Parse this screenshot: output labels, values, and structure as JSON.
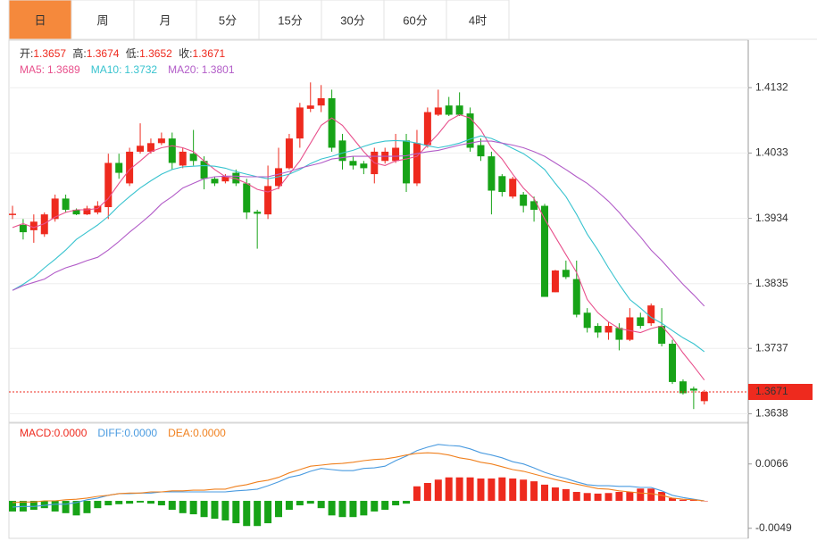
{
  "tabs": [
    "日",
    "周",
    "月",
    "5分",
    "15分",
    "30分",
    "60分",
    "4时"
  ],
  "active_tab": 0,
  "chart_data": [
    {
      "type": "candlestick",
      "info": [
        {
          "label": "开:",
          "value": 1.3657
        },
        {
          "label": "高:",
          "value": 1.3674
        },
        {
          "label": "低:",
          "value": 1.3652
        },
        {
          "label": "收:",
          "value": 1.3671
        }
      ],
      "up_color": "#ee2a1e",
      "down_color": "#17a317",
      "open": [
        1.3939,
        1.3924,
        1.3916,
        1.391,
        1.3933,
        1.3964,
        1.3947,
        1.394,
        1.3943,
        1.3951,
        1.4018,
        1.3987,
        1.4035,
        1.4035,
        1.4048,
        1.4055,
        1.4014,
        1.4032,
        1.4021,
        1.3994,
        1.399,
        1.4003,
        1.3987,
        1.3944,
        1.394,
        1.3983,
        1.401,
        1.4055,
        1.41,
        1.4105,
        1.4116,
        1.4052,
        1.4021,
        1.4017,
        1.4001,
        1.4021,
        1.4021,
        1.4052,
        1.3987,
        1.4045,
        1.4091,
        1.4105,
        1.4105,
        1.4093,
        1.4045,
        1.4028,
        1.3998,
        1.3967,
        1.397,
        1.396,
        1.3953,
        1.3822,
        1.3856,
        1.3842,
        1.3791,
        1.3771,
        1.3761,
        1.3768,
        1.375,
        1.3784,
        1.3775,
        1.3771,
        1.3744,
        1.3687,
        1.3676,
        1.3657
      ],
      "high": [
        1.3953,
        1.3933,
        1.394,
        1.3943,
        1.397,
        1.397,
        1.3949,
        1.3953,
        1.396,
        1.4032,
        1.4032,
        1.4041,
        1.4078,
        1.4055,
        1.4064,
        1.4064,
        1.4041,
        1.4068,
        1.4028,
        1.3997,
        1.4001,
        1.4008,
        1.3994,
        1.3947,
        1.4014,
        1.4041,
        1.4062,
        1.4109,
        1.414,
        1.4136,
        1.4129,
        1.4062,
        1.4028,
        1.4021,
        1.4041,
        1.4041,
        1.4062,
        1.4062,
        1.4068,
        1.4102,
        1.4129,
        1.4118,
        1.4125,
        1.4102,
        1.4055,
        1.4035,
        1.4001,
        1.3997,
        1.3974,
        1.3967,
        1.3956,
        1.3856,
        1.387,
        1.387,
        1.3798,
        1.3775,
        1.3777,
        1.3775,
        1.3798,
        1.3791,
        1.3805,
        1.3798,
        1.375,
        1.369,
        1.3679,
        1.3674
      ],
      "low": [
        1.3933,
        1.3902,
        1.3897,
        1.3906,
        1.3929,
        1.3943,
        1.3939,
        1.3939,
        1.394,
        1.3933,
        1.3994,
        1.3983,
        1.4032,
        1.4032,
        1.4045,
        1.4008,
        1.401,
        1.4014,
        1.3978,
        1.3983,
        1.3987,
        1.3983,
        1.3933,
        1.3888,
        1.3933,
        1.3978,
        1.4008,
        1.4041,
        1.4095,
        1.4095,
        1.4035,
        1.4008,
        1.4008,
        1.4001,
        1.3987,
        1.4017,
        1.4018,
        1.3974,
        1.3983,
        1.4041,
        1.4089,
        1.4089,
        1.4089,
        1.4035,
        1.4021,
        1.394,
        1.3967,
        1.3964,
        1.3943,
        1.3929,
        1.3815,
        1.3822,
        1.3842,
        1.3784,
        1.3761,
        1.3753,
        1.375,
        1.3734,
        1.3748,
        1.3767,
        1.3771,
        1.374,
        1.3683,
        1.3667,
        1.3645,
        1.3652
      ],
      "close": [
        1.3941,
        1.3913,
        1.3929,
        1.394,
        1.3964,
        1.3947,
        1.394,
        1.3949,
        1.3953,
        1.4018,
        1.4003,
        1.4035,
        1.4044,
        1.4048,
        1.4055,
        1.4018,
        1.4035,
        1.4021,
        1.3994,
        1.3987,
        1.3997,
        1.3987,
        1.3943,
        1.3941,
        1.3983,
        1.401,
        1.4055,
        1.4102,
        1.4105,
        1.4116,
        1.4041,
        1.4021,
        1.4014,
        1.401,
        1.4035,
        1.4035,
        1.4041,
        1.3987,
        1.4048,
        1.4095,
        1.4102,
        1.4091,
        1.4091,
        1.4041,
        1.4028,
        1.3976,
        1.3974,
        1.3994,
        1.3953,
        1.3947,
        1.3815,
        1.3855,
        1.3845,
        1.3788,
        1.3768,
        1.3761,
        1.3771,
        1.375,
        1.3784,
        1.3771,
        1.3802,
        1.3744,
        1.3686,
        1.3669,
        1.3673,
        1.3671
      ],
      "ma": [
        {
          "label": "MA5:",
          "last": 1.3689,
          "color": "#e8508c",
          "values": [
            1.392,
            1.3926,
            1.392,
            1.3926,
            1.3936,
            1.3943,
            1.3947,
            1.3947,
            1.3949,
            1.3964,
            1.3987,
            1.4008,
            1.4021,
            1.4035,
            1.4041,
            1.4044,
            1.4041,
            1.4035,
            1.4021,
            1.4008,
            1.3997,
            1.3994,
            1.3987,
            1.3978,
            1.3974,
            1.398,
            1.4001,
            1.4021,
            1.4048,
            1.4075,
            1.4086,
            1.4075,
            1.4055,
            1.4035,
            1.4018,
            1.4014,
            1.4021,
            1.4024,
            1.4028,
            1.4045,
            1.4062,
            1.4082,
            1.4091,
            1.4086,
            1.4068,
            1.4041,
            1.4024,
            1.4001,
            1.398,
            1.3964,
            1.3933,
            1.3906,
            1.3879,
            1.3852,
            1.3811,
            1.3791,
            1.3777,
            1.3767,
            1.3764,
            1.3761,
            1.3767,
            1.3771,
            1.3753,
            1.373,
            1.371,
            1.3689
          ]
        },
        {
          "label": "MA10:",
          "last": 1.3732,
          "color": "#38c3cf",
          "values": [
            1.3825,
            1.3834,
            1.3845,
            1.3859,
            1.3872,
            1.3886,
            1.3902,
            1.3913,
            1.3924,
            1.3937,
            1.3953,
            1.3967,
            1.398,
            1.3991,
            1.4001,
            1.4008,
            1.4012,
            1.4013,
            1.4014,
            1.4013,
            1.401,
            1.4005,
            1.4001,
            1.3997,
            1.3994,
            1.3997,
            1.4001,
            1.4008,
            1.4017,
            1.4024,
            1.4028,
            1.4033,
            1.4037,
            1.4043,
            1.4048,
            1.4051,
            1.4052,
            1.4051,
            1.4048,
            1.4044,
            1.4041,
            1.4044,
            1.4048,
            1.4054,
            1.4059,
            1.4055,
            1.4048,
            1.404,
            1.4032,
            1.4021,
            1.4008,
            1.3987,
            1.3967,
            1.394,
            1.391,
            1.3886,
            1.3859,
            1.3834,
            1.3811,
            1.3798,
            1.3784,
            1.3775,
            1.3764,
            1.3753,
            1.3744,
            1.3732
          ]
        },
        {
          "label": "MA20:",
          "last": 1.3801,
          "color": "#b25cc8",
          "values": [
            1.3825,
            1.3832,
            1.3837,
            1.3842,
            1.3852,
            1.3859,
            1.3864,
            1.387,
            1.3875,
            1.3886,
            1.3899,
            1.3913,
            1.3926,
            1.394,
            1.3956,
            1.3967,
            1.398,
            1.3987,
            1.3994,
            1.3997,
            1.3998,
            1.3998,
            1.3997,
            1.3997,
            1.3997,
            1.4001,
            1.4005,
            1.401,
            1.4014,
            1.4018,
            1.4024,
            1.4026,
            1.4028,
            1.4028,
            1.4028,
            1.4028,
            1.4028,
            1.4029,
            1.4032,
            1.4035,
            1.4037,
            1.4041,
            1.4045,
            1.4048,
            1.4051,
            1.4051,
            1.4048,
            1.4045,
            1.4041,
            1.4035,
            1.4028,
            1.4018,
            1.4008,
            1.3997,
            1.3987,
            1.3974,
            1.396,
            1.3943,
            1.3924,
            1.3906,
            1.3886,
            1.387,
            1.3852,
            1.3834,
            1.3818,
            1.3801
          ]
        }
      ],
      "current_price": 1.3671,
      "ylim": [
        1.3625,
        1.4204
      ],
      "yticks": [
        1.4132,
        1.4033,
        1.3934,
        1.3835,
        1.3737,
        1.3638
      ],
      "grid": true
    },
    {
      "type": "macd",
      "macd": {
        "label": "MACD:",
        "last": {
          "value": 0,
          "label": "0.0000"
        },
        "color": "#ee2a1e",
        "values": [
          -0.0019,
          -0.0019,
          -0.0016,
          -0.0013,
          -0.0019,
          -0.0022,
          -0.0026,
          -0.0022,
          -0.0013,
          -0.0008,
          -0.0006,
          -0.0005,
          -0.0003,
          -0.0005,
          -0.0008,
          -0.0016,
          -0.0022,
          -0.0024,
          -0.0029,
          -0.0032,
          -0.0035,
          -0.004,
          -0.0045,
          -0.0045,
          -0.004,
          -0.0029,
          -0.0016,
          -0.0008,
          -0.0005,
          -0.0013,
          -0.0026,
          -0.0029,
          -0.0029,
          -0.0026,
          -0.0019,
          -0.0016,
          -0.0008,
          -0.0005,
          0.0026,
          0.0032,
          0.0038,
          0.0042,
          0.0042,
          0.0042,
          0.004,
          0.004,
          0.0042,
          0.004,
          0.0038,
          0.0035,
          0.0029,
          0.0024,
          0.0021,
          0.0016,
          0.0014,
          0.0013,
          0.0014,
          0.0016,
          0.0016,
          0.0022,
          0.0022,
          0.0016,
          0.0005,
          0.0002,
          0.0002,
          0
        ]
      },
      "diff": {
        "label": "DIFF:",
        "last": {
          "value": 0,
          "label": "0.0000"
        },
        "color": "#4a9be0",
        "values": [
          -0.0011,
          -0.001,
          -0.001,
          -0.0008,
          -0.0006,
          -0.0006,
          -0.0003,
          0.0002,
          0.0005,
          0.001,
          0.0013,
          0.0013,
          0.0014,
          0.0014,
          0.0016,
          0.0016,
          0.0016,
          0.0016,
          0.0016,
          0.0016,
          0.0016,
          0.0018,
          0.0019,
          0.0021,
          0.0027,
          0.0034,
          0.0042,
          0.0046,
          0.0053,
          0.0058,
          0.0056,
          0.0054,
          0.0054,
          0.0058,
          0.0059,
          0.0062,
          0.0072,
          0.008,
          0.009,
          0.0096,
          0.0101,
          0.0099,
          0.0098,
          0.0093,
          0.0086,
          0.0082,
          0.0077,
          0.007,
          0.0066,
          0.0059,
          0.0051,
          0.0045,
          0.004,
          0.0034,
          0.0029,
          0.0027,
          0.0027,
          0.0026,
          0.0026,
          0.0024,
          0.0024,
          0.0018,
          0.001,
          0.0006,
          0.0003,
          0
        ]
      },
      "dea": {
        "label": "DEA:",
        "last": {
          "value": 0,
          "label": "0.0000"
        },
        "color": "#f0801e",
        "values": [
          -0.0003,
          -0.0002,
          -0.0002,
          0,
          0,
          0.0002,
          0.0003,
          0.0005,
          0.0008,
          0.001,
          0.0013,
          0.0014,
          0.0014,
          0.0016,
          0.0016,
          0.0018,
          0.0018,
          0.0019,
          0.0019,
          0.0021,
          0.0021,
          0.0026,
          0.0029,
          0.0034,
          0.0037,
          0.0042,
          0.005,
          0.0056,
          0.0062,
          0.0064,
          0.0066,
          0.0067,
          0.0069,
          0.0072,
          0.0074,
          0.0075,
          0.0078,
          0.0082,
          0.0085,
          0.0086,
          0.0085,
          0.0082,
          0.0077,
          0.0074,
          0.0069,
          0.0066,
          0.0061,
          0.0056,
          0.0053,
          0.0048,
          0.0043,
          0.0038,
          0.0034,
          0.003,
          0.0026,
          0.0022,
          0.0021,
          0.0018,
          0.0016,
          0.0014,
          0.0013,
          0.001,
          0.0005,
          0.0003,
          0.0002,
          0
        ]
      },
      "up_color": "#ee2a1e",
      "down_color": "#17a317",
      "ylim": [
        -0.0067,
        0.0139
      ],
      "yticks": [
        0.0066,
        -0.0049
      ]
    }
  ]
}
